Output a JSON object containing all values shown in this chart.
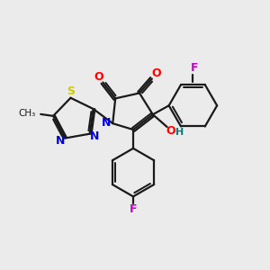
{
  "background_color": "#ebebeb",
  "bond_color": "#1a1a1a",
  "atom_colors": {
    "O": "#ff0000",
    "N": "#0000ee",
    "S": "#cccc00",
    "F": "#cc00cc",
    "OH_O": "#ff0000",
    "OH_H": "#008080",
    "C_methyl": "#1a1a1a"
  },
  "figsize": [
    3.0,
    3.0
  ],
  "dpi": 100
}
